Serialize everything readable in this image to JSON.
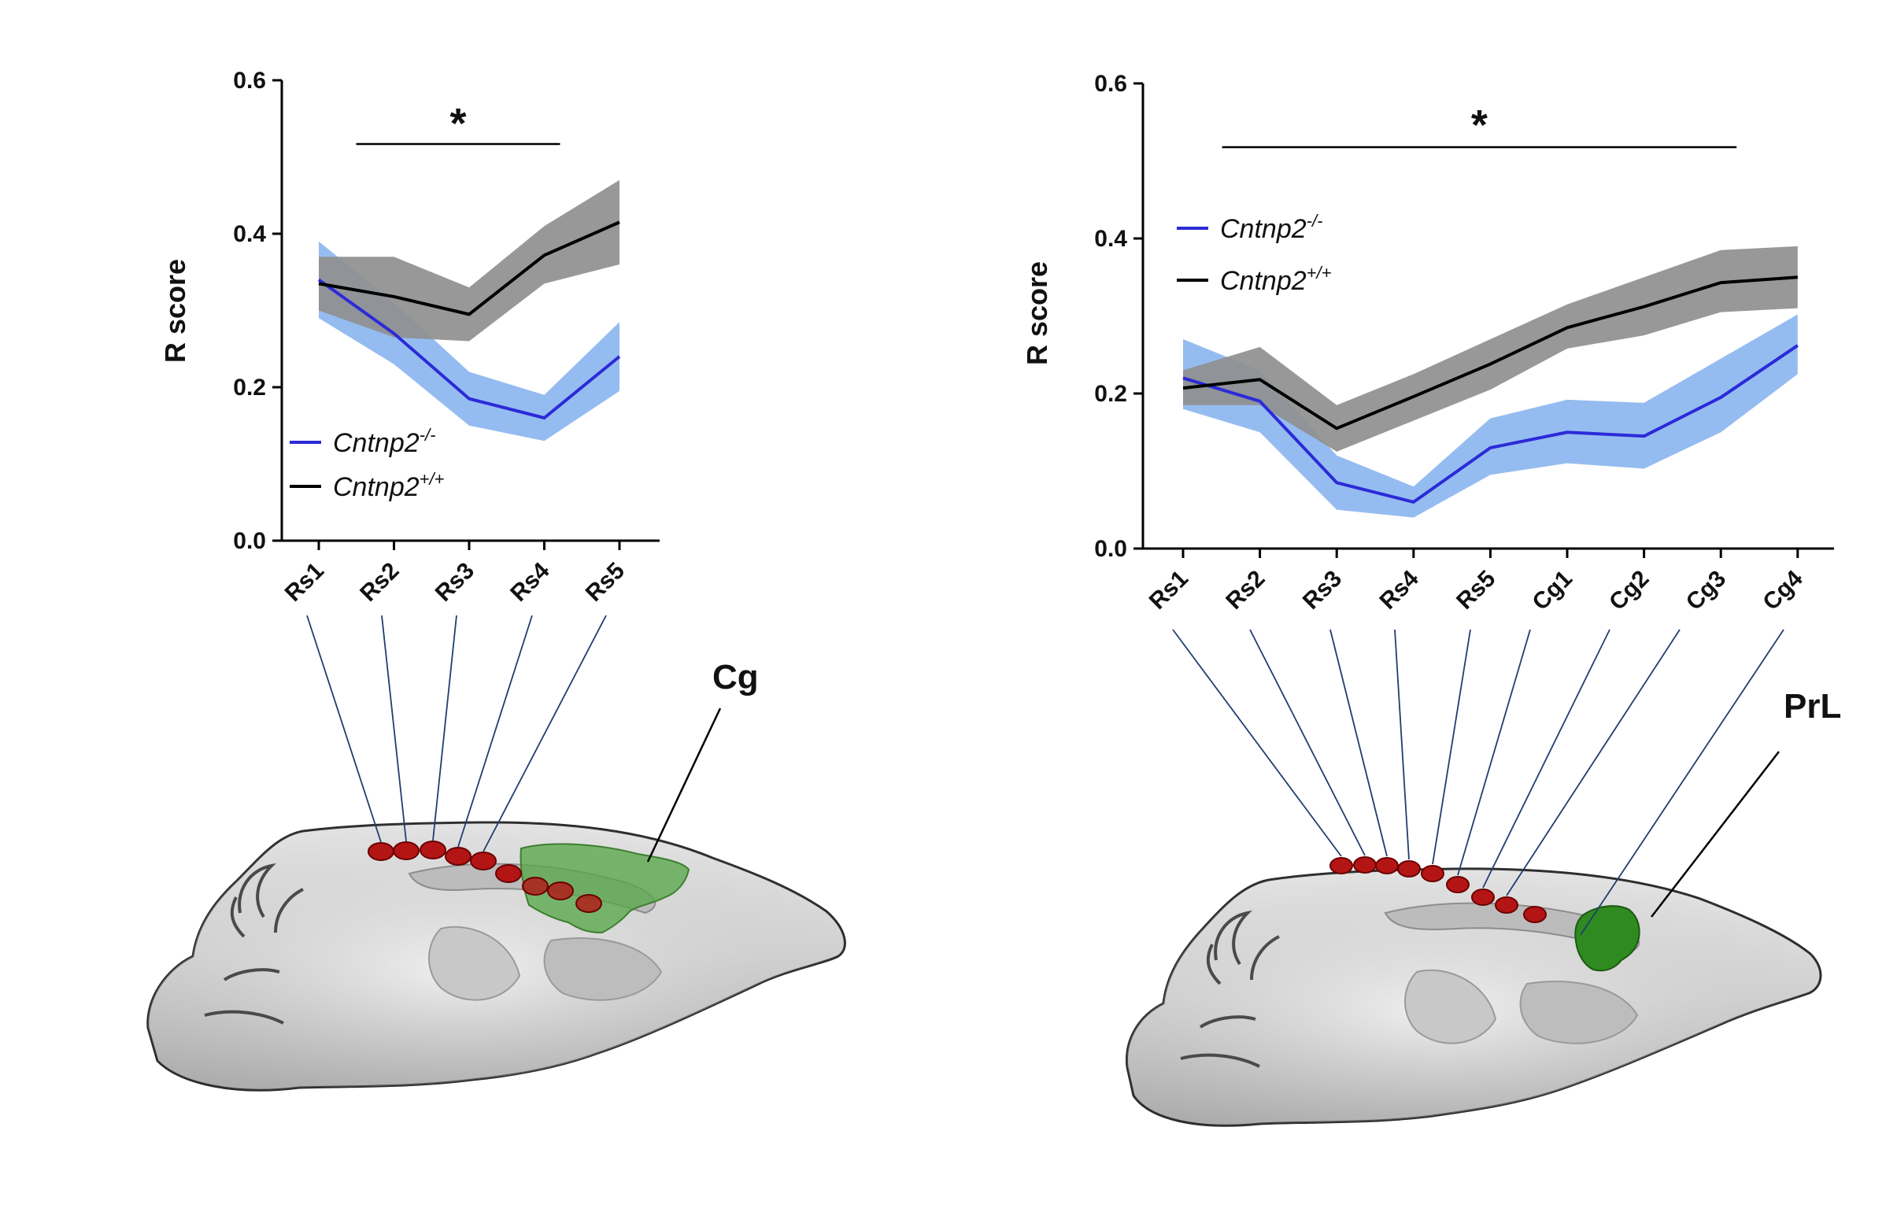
{
  "chart_data": [
    {
      "type": "line",
      "title": "",
      "xlabel": "",
      "ylabel": "R score",
      "ylim": [
        0,
        0.6
      ],
      "yticks": [
        "0.0",
        "0.2",
        "0.4",
        "0.6"
      ],
      "categories": [
        "Rs1",
        "Rs2",
        "Rs3",
        "Rs4",
        "Rs5"
      ],
      "series": [
        {
          "name": "Cntnp2-/-",
          "legend_main": "Cntnp2",
          "legend_sup": "-/-",
          "color": "#2b2bd8",
          "band_color": "#8fb8ef",
          "values": [
            0.34,
            0.27,
            0.185,
            0.16,
            0.24
          ],
          "lower": [
            0.29,
            0.23,
            0.15,
            0.13,
            0.195
          ],
          "upper": [
            0.39,
            0.31,
            0.22,
            0.19,
            0.285
          ]
        },
        {
          "name": "Cntnp2+/+",
          "legend_main": "Cntnp2",
          "legend_sup": "+/+",
          "color": "#000000",
          "band_color": "#8f8f8f",
          "values": [
            0.335,
            0.318,
            0.295,
            0.372,
            0.415
          ],
          "lower": [
            0.3,
            0.265,
            0.26,
            0.335,
            0.36
          ],
          "upper": [
            0.37,
            0.37,
            0.33,
            0.41,
            0.47
          ]
        }
      ],
      "significance": {
        "label": "*",
        "from": "Rs2",
        "to": "Rs4"
      },
      "legend_position": "bottom-left",
      "annotation": "Cg"
    },
    {
      "type": "line",
      "title": "",
      "xlabel": "",
      "ylabel": "R score",
      "ylim": [
        0,
        0.6
      ],
      "yticks": [
        "0.0",
        "0.2",
        "0.4",
        "0.6"
      ],
      "categories": [
        "Rs1",
        "Rs2",
        "Rs3",
        "Rs4",
        "Rs5",
        "Cg1",
        "Cg2",
        "Cg3",
        "Cg4"
      ],
      "series": [
        {
          "name": "Cntnp2-/-",
          "legend_main": "Cntnp2",
          "legend_sup": "-/-",
          "color": "#2b2bd8",
          "band_color": "#8fb8ef",
          "values": [
            0.22,
            0.19,
            0.085,
            0.06,
            0.13,
            0.15,
            0.145,
            0.195,
            0.262
          ],
          "lower": [
            0.18,
            0.15,
            0.05,
            0.04,
            0.095,
            0.11,
            0.103,
            0.15,
            0.225
          ],
          "upper": [
            0.27,
            0.23,
            0.12,
            0.08,
            0.168,
            0.192,
            0.188,
            0.245,
            0.302
          ]
        },
        {
          "name": "Cntnp2+/+",
          "legend_main": "Cntnp2",
          "legend_sup": "+/+",
          "color": "#000000",
          "band_color": "#8f8f8f",
          "values": [
            0.207,
            0.218,
            0.155,
            0.196,
            0.238,
            0.285,
            0.312,
            0.343,
            0.35
          ],
          "lower": [
            0.185,
            0.185,
            0.125,
            0.165,
            0.205,
            0.258,
            0.275,
            0.305,
            0.31
          ],
          "upper": [
            0.23,
            0.26,
            0.185,
            0.225,
            0.27,
            0.315,
            0.35,
            0.385,
            0.39
          ]
        }
      ],
      "significance": {
        "label": "*",
        "from": "Rs2",
        "to": "Cg3"
      },
      "legend_position": "top-left",
      "annotation": "PrL"
    }
  ]
}
